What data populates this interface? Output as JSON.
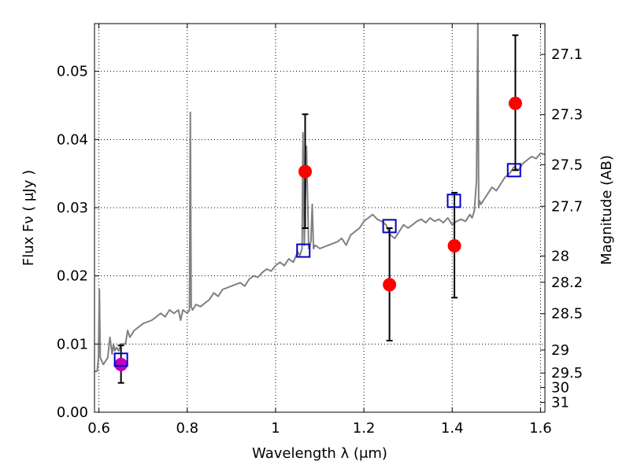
{
  "chart_data": {
    "type": "scatter",
    "xlabel": "Wavelength  λ (μm)",
    "ylabel": "Flux  Fν  ( μJy )",
    "y2label": "Magnitude (AB)",
    "xlim": [
      0.59,
      1.61
    ],
    "ylim": [
      0.0,
      0.057
    ],
    "grid": true,
    "grid_style": "dotted",
    "x_ticks": [
      {
        "value": 0.6,
        "label": "0.6"
      },
      {
        "value": 0.8,
        "label": "0.8"
      },
      {
        "value": 1.0,
        "label": "1"
      },
      {
        "value": 1.2,
        "label": "1.2"
      },
      {
        "value": 1.4,
        "label": "1.4"
      },
      {
        "value": 1.6,
        "label": "1.6"
      }
    ],
    "y_ticks": [
      {
        "value": 0.0,
        "label": "0.00"
      },
      {
        "value": 0.01,
        "label": "0.01"
      },
      {
        "value": 0.02,
        "label": "0.02"
      },
      {
        "value": 0.03,
        "label": "0.03"
      },
      {
        "value": 0.04,
        "label": "0.04"
      },
      {
        "value": 0.05,
        "label": "0.05"
      }
    ],
    "y2_ticks": [
      {
        "value": 27.1,
        "label": "27.1"
      },
      {
        "value": 27.3,
        "label": "27.3"
      },
      {
        "value": 27.5,
        "label": "27.5"
      },
      {
        "value": 27.7,
        "label": "27.7"
      },
      {
        "value": 28.0,
        "label": "28"
      },
      {
        "value": 28.2,
        "label": "28.2"
      },
      {
        "value": 28.5,
        "label": "28.5"
      },
      {
        "value": 29.0,
        "label": "29"
      },
      {
        "value": 29.5,
        "label": "29.5"
      },
      {
        "value": 30.0,
        "label": "30"
      },
      {
        "value": 31.0,
        "label": "31"
      }
    ],
    "series": [
      {
        "kind": "line",
        "color": "#808080",
        "x": [
          0.59,
          0.596,
          0.599,
          0.601,
          0.603,
          0.61,
          0.62,
          0.625,
          0.63,
          0.633,
          0.636,
          0.64,
          0.645,
          0.65,
          0.66,
          0.665,
          0.67,
          0.68,
          0.69,
          0.7,
          0.72,
          0.74,
          0.75,
          0.76,
          0.77,
          0.78,
          0.785,
          0.79,
          0.8,
          0.805,
          0.807,
          0.809,
          0.812,
          0.82,
          0.83,
          0.84,
          0.85,
          0.86,
          0.87,
          0.88,
          0.9,
          0.92,
          0.93,
          0.94,
          0.95,
          0.96,
          0.97,
          0.98,
          0.99,
          1.0,
          1.01,
          1.02,
          1.03,
          1.04,
          1.05,
          1.055,
          1.06,
          1.062,
          1.065,
          1.07,
          1.075,
          1.08,
          1.083,
          1.086,
          1.09,
          1.1,
          1.12,
          1.14,
          1.15,
          1.16,
          1.17,
          1.18,
          1.19,
          1.2,
          1.21,
          1.22,
          1.23,
          1.24,
          1.25,
          1.26,
          1.27,
          1.28,
          1.29,
          1.3,
          1.31,
          1.32,
          1.33,
          1.34,
          1.35,
          1.36,
          1.37,
          1.38,
          1.39,
          1.4,
          1.41,
          1.42,
          1.43,
          1.44,
          1.445,
          1.45,
          1.455,
          1.458,
          1.46,
          1.462,
          1.465,
          1.47,
          1.48,
          1.49,
          1.5,
          1.51,
          1.52,
          1.53,
          1.54,
          1.55,
          1.56,
          1.57,
          1.58,
          1.59,
          1.6,
          1.61
        ],
        "y": [
          0.006,
          0.006,
          0.008,
          0.018,
          0.008,
          0.007,
          0.008,
          0.011,
          0.0085,
          0.01,
          0.009,
          0.0095,
          0.009,
          0.01,
          0.01,
          0.012,
          0.011,
          0.012,
          0.0125,
          0.013,
          0.0135,
          0.0145,
          0.014,
          0.015,
          0.0145,
          0.015,
          0.0135,
          0.015,
          0.0145,
          0.015,
          0.044,
          0.0155,
          0.015,
          0.0158,
          0.0155,
          0.016,
          0.0165,
          0.0175,
          0.017,
          0.018,
          0.0185,
          0.019,
          0.0185,
          0.0195,
          0.02,
          0.0198,
          0.0205,
          0.021,
          0.0207,
          0.0215,
          0.022,
          0.0215,
          0.0225,
          0.022,
          0.0235,
          0.023,
          0.024,
          0.041,
          0.0245,
          0.039,
          0.024,
          0.025,
          0.0305,
          0.024,
          0.0245,
          0.024,
          0.0245,
          0.025,
          0.0255,
          0.0245,
          0.026,
          0.0265,
          0.027,
          0.028,
          0.0285,
          0.029,
          0.0283,
          0.028,
          0.0275,
          0.026,
          0.0255,
          0.0265,
          0.0275,
          0.027,
          0.0275,
          0.028,
          0.0283,
          0.0278,
          0.0285,
          0.028,
          0.0283,
          0.0278,
          0.0285,
          0.0275,
          0.028,
          0.0283,
          0.028,
          0.029,
          0.0285,
          0.0295,
          0.034,
          0.057,
          0.03,
          0.031,
          0.0305,
          0.031,
          0.032,
          0.033,
          0.0325,
          0.0335,
          0.0345,
          0.035,
          0.036,
          0.0355,
          0.0365,
          0.037,
          0.0375,
          0.0372,
          0.038,
          0.0378
        ]
      },
      {
        "kind": "errorbar",
        "color": "#000000",
        "x": [
          0.65,
          1.067,
          1.258,
          1.405,
          1.543
        ],
        "y": [
          0.007,
          0.0353,
          0.0187,
          0.0244,
          0.0453
        ],
        "yerr_low": [
          0.0043,
          0.027,
          0.0105,
          0.0168,
          0.0355
        ],
        "yerr_high": [
          0.0098,
          0.0437,
          0.027,
          0.0322,
          0.0553
        ]
      },
      {
        "kind": "scatter",
        "marker": "circle",
        "color": "#ff0000",
        "x": [
          1.067,
          1.258,
          1.405,
          1.543
        ],
        "y": [
          0.0353,
          0.0187,
          0.0244,
          0.0453
        ]
      },
      {
        "kind": "scatter",
        "marker": "circle",
        "color": "#bf00bf",
        "x": [
          0.65
        ],
        "y": [
          0.007
        ]
      },
      {
        "kind": "scatter",
        "marker": "square-open",
        "color": "#0000cc",
        "x": [
          0.65,
          1.063,
          1.258,
          1.404,
          1.54
        ],
        "y": [
          0.0077,
          0.0237,
          0.0273,
          0.031,
          0.0355
        ]
      }
    ]
  }
}
